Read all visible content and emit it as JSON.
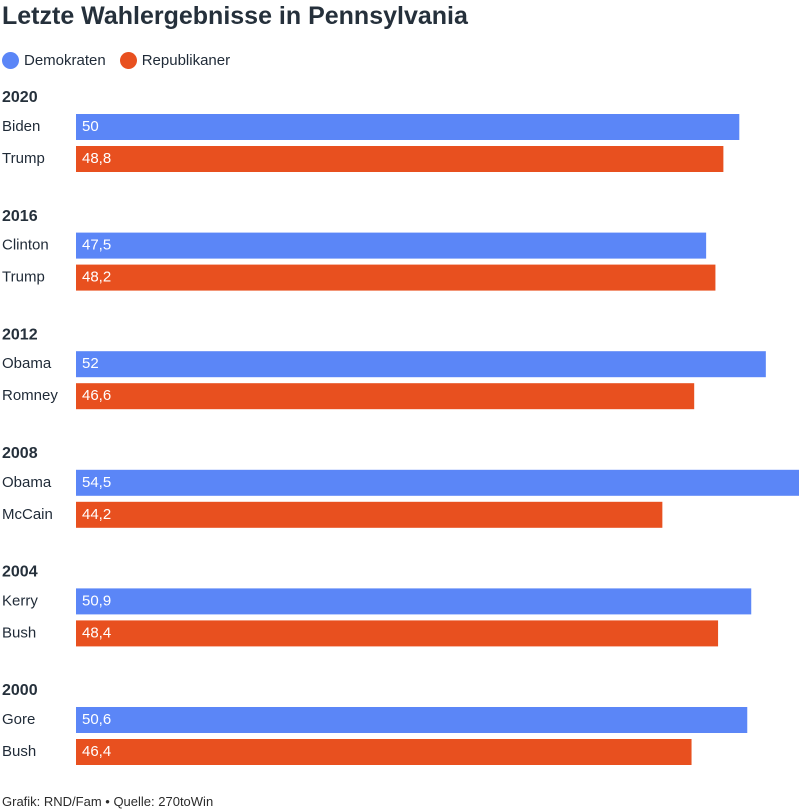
{
  "title": "Letzte Wahlergebnisse in Pennsylvania",
  "legend": [
    {
      "label": "Demokraten",
      "color": "#5b86f7"
    },
    {
      "label": "Republikaner",
      "color": "#e8501f"
    }
  ],
  "footer": "Grafik: RND/Fam • Quelle: 270toWin",
  "chart_data": {
    "type": "bar",
    "orientation": "horizontal",
    "xlim": [
      0,
      54.5
    ],
    "groups": [
      {
        "year": "2020",
        "bars": [
          {
            "candidate": "Biden",
            "party": "Demokraten",
            "value": 50,
            "label": "50"
          },
          {
            "candidate": "Trump",
            "party": "Republikaner",
            "value": 48.8,
            "label": "48,8"
          }
        ]
      },
      {
        "year": "2016",
        "bars": [
          {
            "candidate": "Clinton",
            "party": "Demokraten",
            "value": 47.5,
            "label": "47,5"
          },
          {
            "candidate": "Trump",
            "party": "Republikaner",
            "value": 48.2,
            "label": "48,2"
          }
        ]
      },
      {
        "year": "2012",
        "bars": [
          {
            "candidate": "Obama",
            "party": "Demokraten",
            "value": 52,
            "label": "52"
          },
          {
            "candidate": "Romney",
            "party": "Republikaner",
            "value": 46.6,
            "label": "46,6"
          }
        ]
      },
      {
        "year": "2008",
        "bars": [
          {
            "candidate": "Obama",
            "party": "Demokraten",
            "value": 54.5,
            "label": "54,5"
          },
          {
            "candidate": "McCain",
            "party": "Republikaner",
            "value": 44.2,
            "label": "44,2"
          }
        ]
      },
      {
        "year": "2004",
        "bars": [
          {
            "candidate": "Kerry",
            "party": "Demokraten",
            "value": 50.9,
            "label": "50,9"
          },
          {
            "candidate": "Bush",
            "party": "Republikaner",
            "value": 48.4,
            "label": "48,4"
          }
        ]
      },
      {
        "year": "2000",
        "bars": [
          {
            "candidate": "Gore",
            "party": "Demokraten",
            "value": 50.6,
            "label": "50,6"
          },
          {
            "candidate": "Bush",
            "party": "Republikaner",
            "value": 46.4,
            "label": "46,4"
          }
        ]
      }
    ]
  }
}
